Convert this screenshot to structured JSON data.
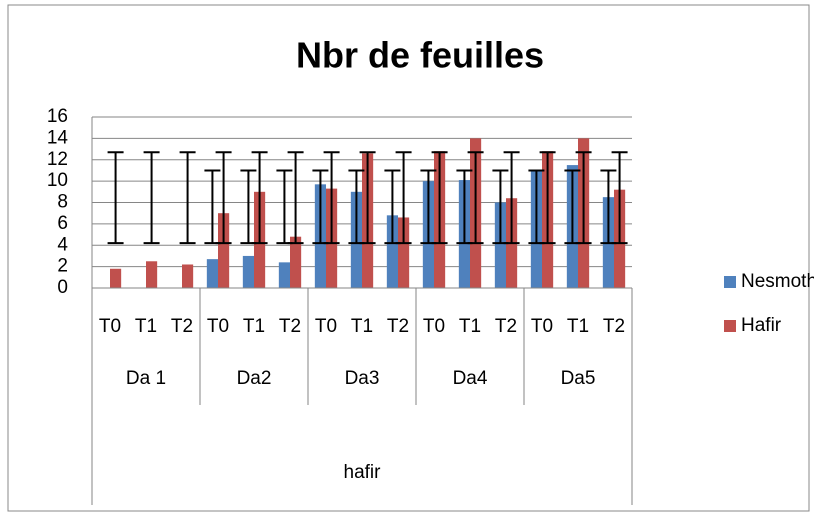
{
  "chart_data": {
    "type": "bar",
    "title": "Nbr de feuilles",
    "top_group": "hafir",
    "groups": [
      {
        "name": "Da 1",
        "categories": [
          "T0",
          "T1",
          "T2"
        ]
      },
      {
        "name": "Da2",
        "categories": [
          "T0",
          "T1",
          "T2"
        ]
      },
      {
        "name": "Da3",
        "categories": [
          "T0",
          "T1",
          "T2"
        ]
      },
      {
        "name": "Da4",
        "categories": [
          "T0",
          "T1",
          "T2"
        ]
      },
      {
        "name": "Da5",
        "categories": [
          "T0",
          "T1",
          "T2"
        ]
      }
    ],
    "series": [
      {
        "name": "Nesmoth",
        "color": "#4f81bd",
        "values": [
          0,
          0,
          0,
          2.7,
          3,
          2.4,
          9.7,
          9,
          6.8,
          10,
          10.1,
          8,
          11,
          11.5,
          8.5
        ],
        "error_low": [
          null,
          null,
          null,
          4.2,
          4.2,
          4.2,
          4.2,
          4.2,
          4.2,
          4.2,
          4.2,
          4.2,
          4.2,
          4.2,
          4.2
        ],
        "error_high": [
          null,
          null,
          null,
          11,
          11,
          11,
          11,
          11,
          11,
          11,
          11,
          11,
          11,
          11,
          11
        ]
      },
      {
        "name": "Hafir",
        "color": "#c0504d",
        "values": [
          1.8,
          2.5,
          2.2,
          7,
          9,
          4.8,
          9.3,
          12.6,
          6.6,
          12.8,
          14,
          8.4,
          12.8,
          14,
          9.2
        ],
        "error_low": [
          4.2,
          4.2,
          4.2,
          4.2,
          4.2,
          4.2,
          4.2,
          4.2,
          4.2,
          4.2,
          4.2,
          4.2,
          4.2,
          4.2,
          4.2
        ],
        "error_high": [
          12.7,
          12.7,
          12.7,
          12.7,
          12.7,
          12.7,
          12.7,
          12.7,
          12.7,
          12.7,
          12.7,
          12.7,
          12.7,
          12.7,
          12.7
        ]
      }
    ],
    "ylim": [
      0,
      16
    ],
    "yticks": [
      0,
      2,
      4,
      6,
      8,
      10,
      12,
      14,
      16
    ],
    "grid": true,
    "legend": "right"
  }
}
